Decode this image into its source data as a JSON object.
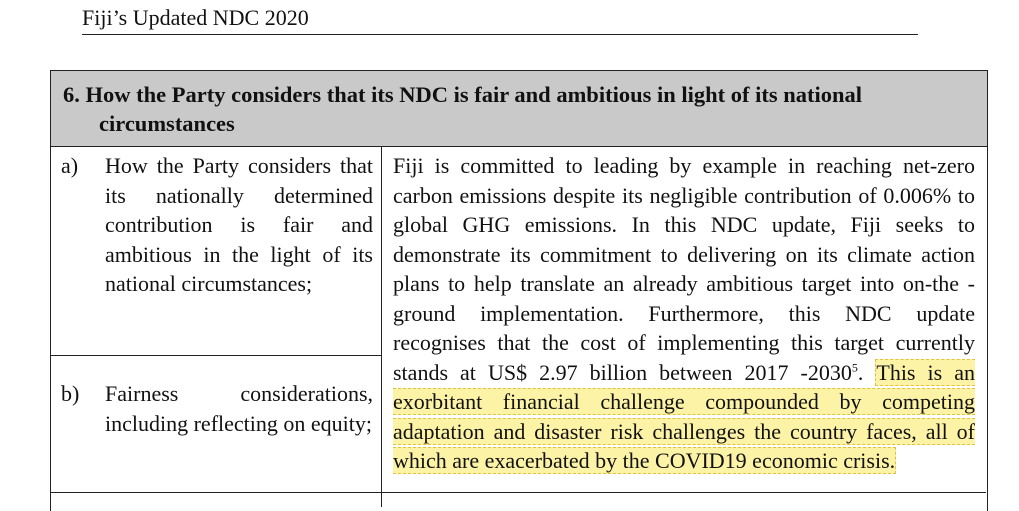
{
  "header": {
    "title": "Fiji’s Updated NDC 2020"
  },
  "section": {
    "heading": "6. How the Party considers that its NDC is fair and ambitious in light of its national circumstances"
  },
  "items": [
    {
      "letter": "a)",
      "text": "How the Party considers that its nationally determined contribution is fair and ambitious in the light of its national circumstances;"
    },
    {
      "letter": "b)",
      "text": "Fairness considerations, including reflecting on equity;"
    }
  ],
  "response": {
    "text_part1": "Fiji is committed to leading by example in reaching net-zero carbon emissions despite its negligible contribution of 0.006% to global GHG emissions. In this NDC update, Fiji seeks to demonstrate its commitment to delivering on its climate action plans to help translate an already ambitious target into on-the -ground implementation. Furthermore, this NDC update recognises that the cost of implementing this target currently stands at US$ 2.97 billion between 2017 -2030",
    "footnote": "5",
    "text_part2": ". ",
    "highlighted": "This is an exorbitant financial challenge compounded by competing adaptation and disaster risk challenges the country faces, all of which are exacerbated by the COVID19 economic crisis."
  }
}
